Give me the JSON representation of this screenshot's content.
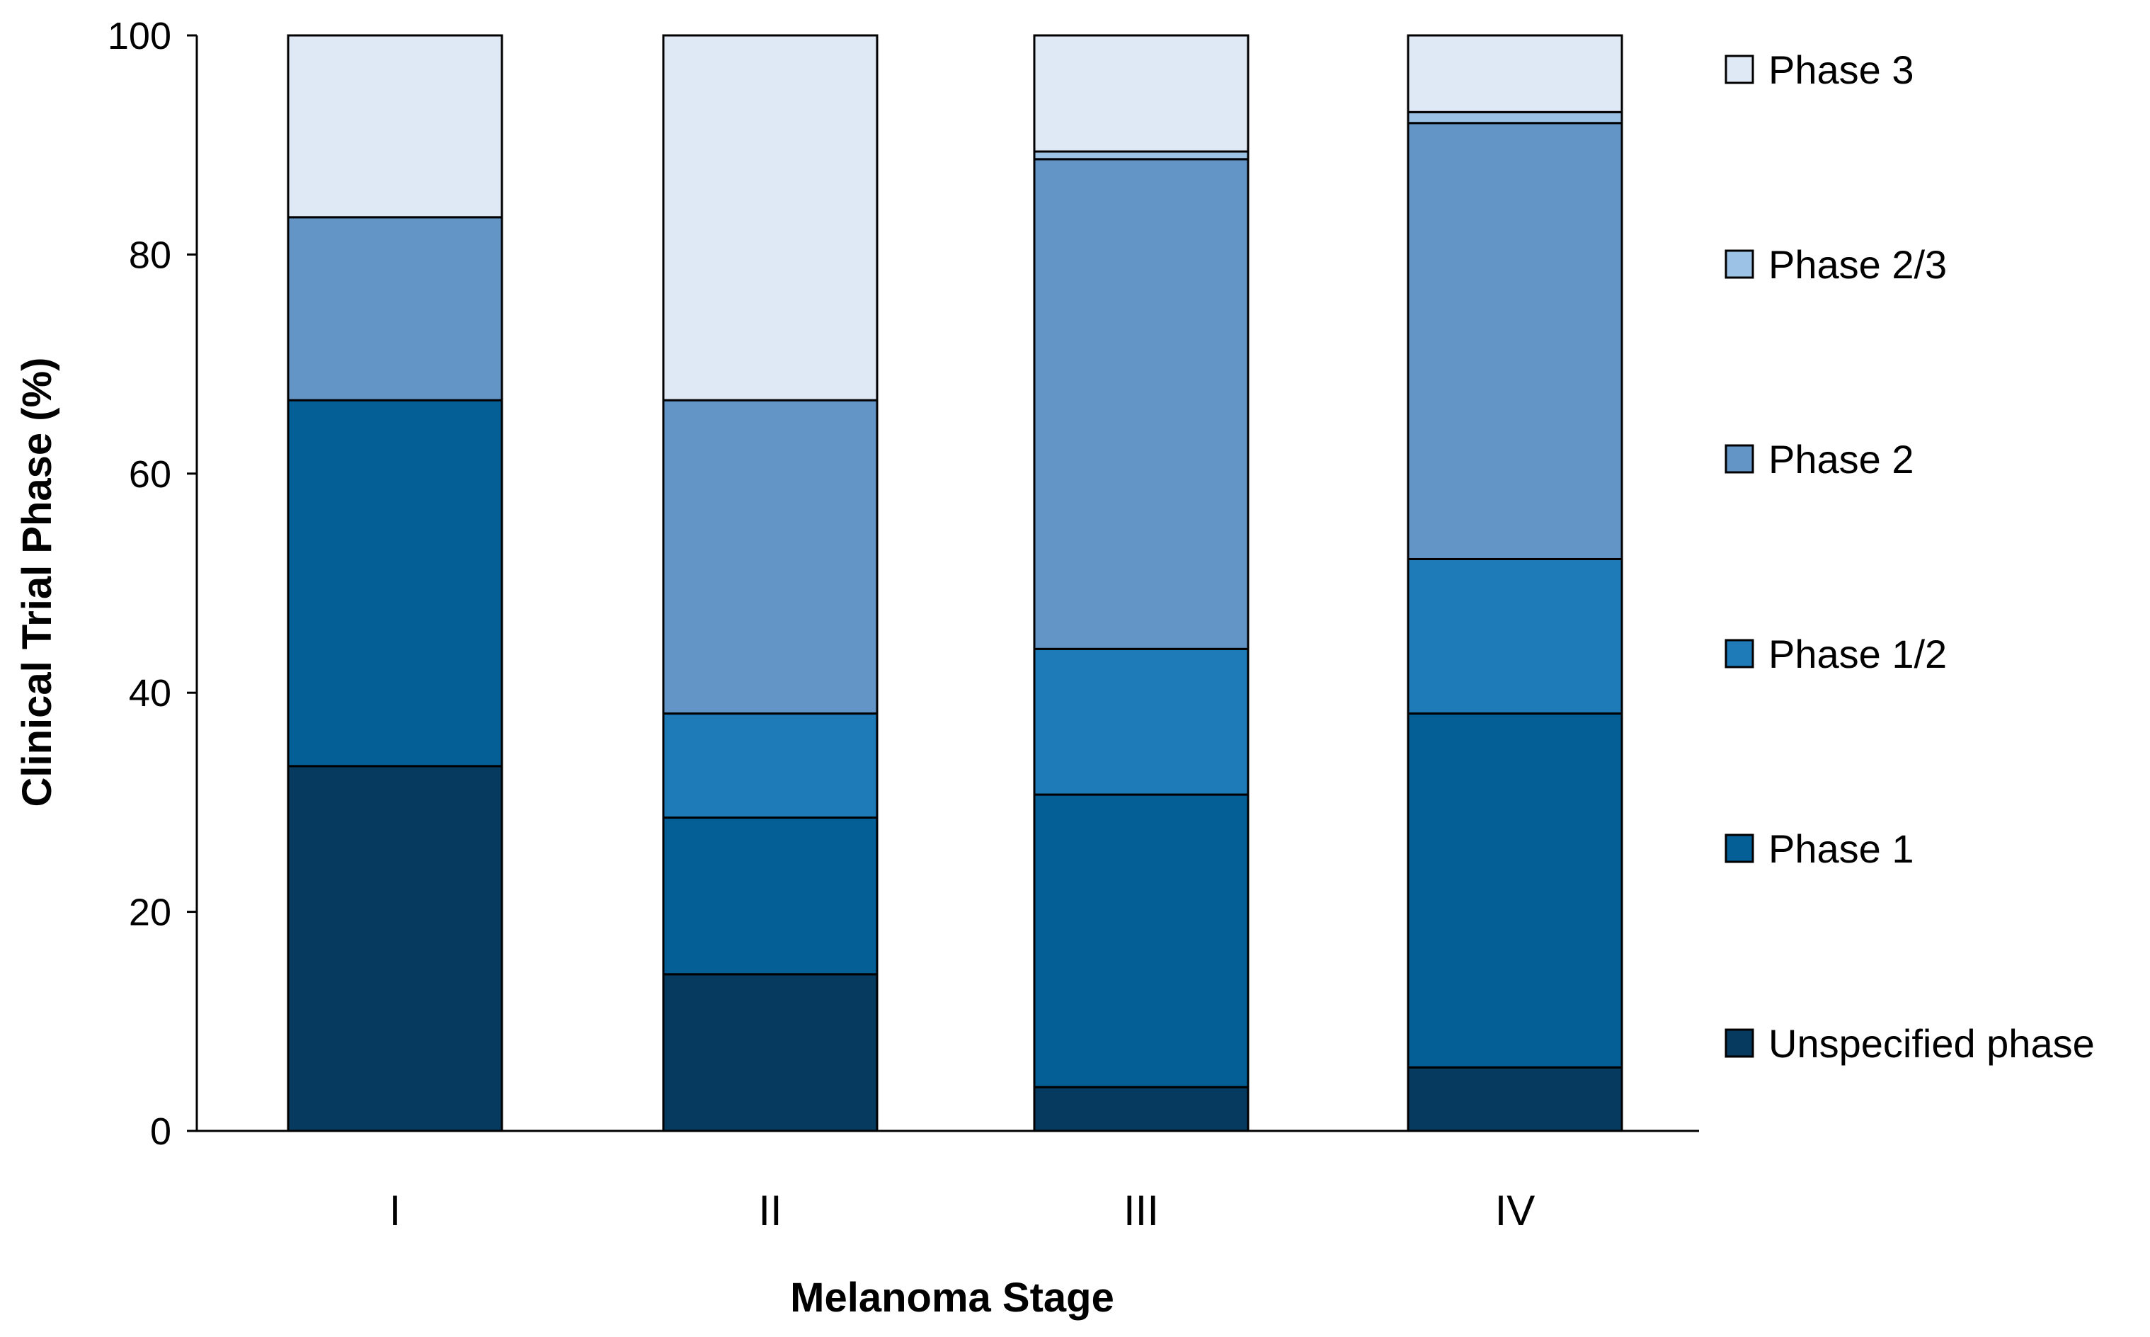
{
  "chart_data": {
    "type": "bar",
    "stacked": true,
    "title": "",
    "xlabel": "Melanoma Stage",
    "ylabel": "Clinical Trial Phase (%)",
    "ylim": [
      0,
      100
    ],
    "yticks": [
      "0",
      "20",
      "40",
      "60",
      "80",
      "100"
    ],
    "ytick_values": [
      0,
      20,
      40,
      60,
      80,
      100
    ],
    "categories": [
      "I",
      "II",
      "III",
      "IV"
    ],
    "grid": false,
    "legend_position": "right",
    "series": [
      {
        "name": "Unspecified phase",
        "color": "#063a5e",
        "values": [
          33.3,
          14.3,
          4.0,
          5.8
        ]
      },
      {
        "name": "Phase 1",
        "color": "#045f96",
        "values": [
          33.4,
          14.3,
          26.7,
          32.3
        ]
      },
      {
        "name": "Phase 1/2",
        "color": "#1f7ab8",
        "values": [
          0,
          9.5,
          13.3,
          14.1
        ]
      },
      {
        "name": "Phase 2",
        "color": "#6395c6",
        "values": [
          16.7,
          28.6,
          44.7,
          39.8
        ]
      },
      {
        "name": "Phase 2/3",
        "color": "#9cc3e6",
        "values": [
          0,
          0,
          0.7,
          1.0
        ]
      },
      {
        "name": "Phase 3",
        "color": "#dfe9f5",
        "values": [
          16.6,
          33.3,
          10.6,
          7.0
        ]
      }
    ]
  }
}
